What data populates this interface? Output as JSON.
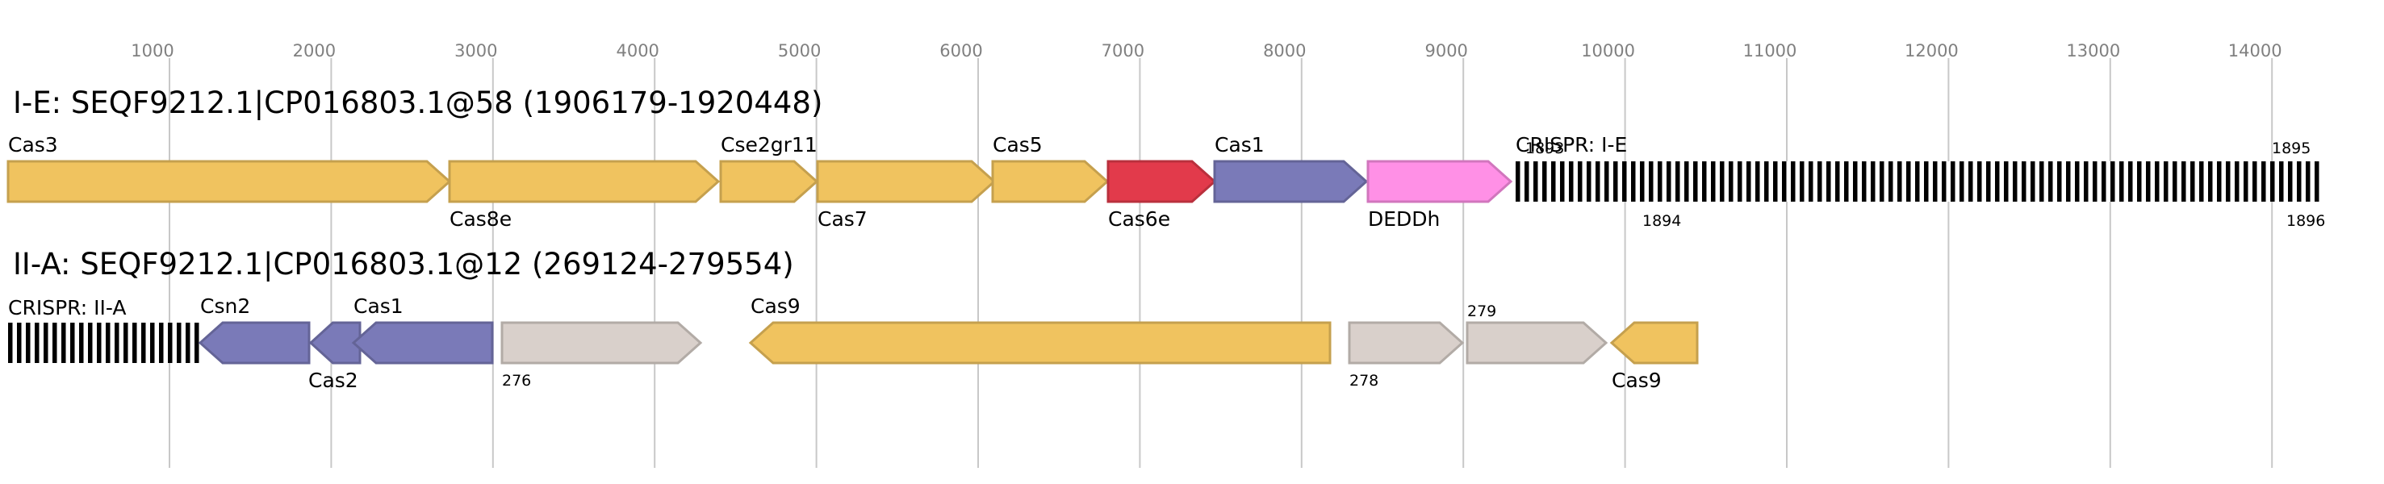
{
  "axis": {
    "ticks": [
      "1000",
      "2000",
      "3000",
      "4000",
      "5000",
      "6000",
      "7000",
      "8000",
      "9000",
      "10000",
      "11000",
      "12000",
      "13000",
      "14000"
    ]
  },
  "loci": [
    {
      "title": "I-E: SEQF9212.1|CP016803.1@58 (1906179-1920448)",
      "genes": [
        {
          "label": "Cas3",
          "color": "#f0c35f",
          "strand": "+"
        },
        {
          "label": "Cas8e",
          "color": "#f0c35f",
          "strand": "+"
        },
        {
          "label": "Cse2gr11",
          "color": "#f0c35f",
          "strand": "+"
        },
        {
          "label": "Cas7",
          "color": "#f0c35f",
          "strand": "+"
        },
        {
          "label": "Cas5",
          "color": "#f0c35f",
          "strand": "+"
        },
        {
          "label": "Cas6e",
          "color": "#e23a4b",
          "strand": "+"
        },
        {
          "label": "Cas1",
          "color": "#7a7ab8",
          "strand": "+"
        },
        {
          "label": "DEDDh",
          "color": "#ff90e6",
          "strand": "+"
        }
      ],
      "array": {
        "label": "CRISPR: I-E",
        "annotations": [
          "1893",
          "1894",
          "1895",
          "1896"
        ]
      }
    },
    {
      "title": "II-A: SEQF9212.1|CP016803.1@12 (269124-279554)",
      "array": {
        "label": "CRISPR: II-A"
      },
      "genes": [
        {
          "label": "Csn2",
          "color": "#7a7ab8",
          "strand": "-"
        },
        {
          "label": "Cas2",
          "color": "#7a7ab8",
          "strand": "-"
        },
        {
          "label": "Cas1",
          "color": "#7a7ab8",
          "strand": "-"
        },
        {
          "label": "276",
          "color": "#d9d0cb",
          "strand": "+"
        },
        {
          "label": "Cas9",
          "color": "#f0c35f",
          "strand": "-"
        },
        {
          "label": "278",
          "color": "#d9d0cb",
          "strand": "+"
        },
        {
          "label": "279",
          "color": "#d9d0cb",
          "strand": "+"
        },
        {
          "label": "Cas9",
          "color": "#f0c35f",
          "strand": "-"
        }
      ]
    }
  ]
}
